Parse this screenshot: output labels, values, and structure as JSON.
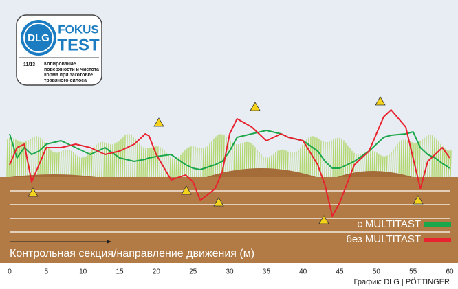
{
  "badge": {
    "logo": "DLG",
    "brand": "FOKUS",
    "label": "TEST",
    "issue": "11/13",
    "description": [
      "Копирование",
      "поверхности и чистота",
      "корма при заготовке",
      "травяного силоса"
    ]
  },
  "chart_data": {
    "type": "line",
    "xlabel": "Контрольная секция/направление движения (м)",
    "source": "График: DLG | PÖTTINGER",
    "x": [
      0,
      1,
      2,
      3,
      4,
      5,
      7,
      9,
      11,
      13,
      15,
      17,
      18.5,
      19,
      20,
      22,
      24,
      25,
      26,
      28,
      29,
      30,
      31,
      33,
      35,
      37,
      38,
      40,
      42,
      43,
      44,
      45,
      47,
      49,
      51,
      52,
      54,
      55,
      56,
      57,
      58,
      59,
      60
    ],
    "xlim": [
      0,
      60
    ],
    "xticks": [
      0,
      5,
      10,
      15,
      20,
      25,
      30,
      35,
      40,
      45,
      50,
      55,
      60
    ],
    "ylim": [
      -50,
      60
    ],
    "series": [
      {
        "name": "с MULTITAST",
        "color": "#1aa64a",
        "values": [
          22.5,
          5,
          12.5,
          7.5,
          10,
          15,
          17.5,
          12.5,
          7.5,
          12.5,
          5,
          2.5,
          4,
          5,
          6,
          7.5,
          0,
          -2.5,
          -3.5,
          0,
          2.5,
          10,
          20,
          22.5,
          25,
          22.5,
          20,
          17.5,
          10,
          2.5,
          -2.5,
          -2.5,
          2.5,
          10,
          20,
          21.5,
          22.5,
          24,
          12.5,
          7.5,
          5,
          1,
          -2.5
        ]
      },
      {
        "name": "без MULTITAST",
        "color": "#e8222e",
        "values": [
          0,
          12.5,
          15,
          -12.5,
          0,
          12.5,
          12.5,
          15,
          12.5,
          7.5,
          10,
          15,
          22.5,
          21,
          7.5,
          -11,
          -7.5,
          -12.5,
          -26,
          -17.5,
          -5,
          22.5,
          33.5,
          27.5,
          17.5,
          22.5,
          20,
          17.5,
          0,
          -15,
          -37.5,
          -27.5,
          0,
          10,
          35,
          40,
          27.5,
          5,
          -17.5,
          2.5,
          7.5,
          12.5,
          5
        ]
      }
    ]
  }
}
